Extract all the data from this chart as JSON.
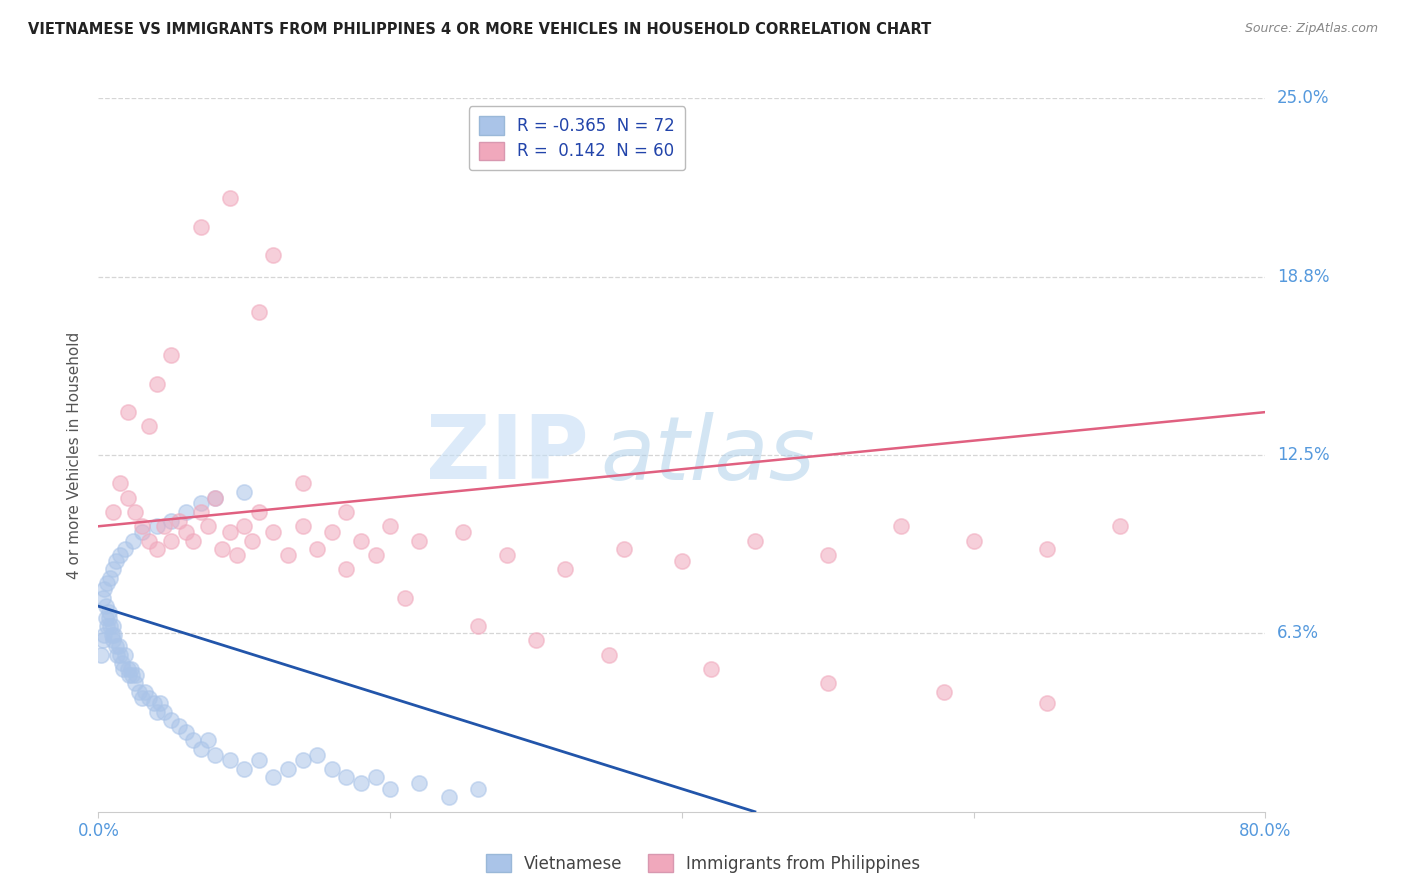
{
  "title": "VIETNAMESE VS IMMIGRANTS FROM PHILIPPINES 4 OR MORE VEHICLES IN HOUSEHOLD CORRELATION CHART",
  "source": "Source: ZipAtlas.com",
  "ylabel": "4 or more Vehicles in Household",
  "xlim": [
    0.0,
    80.0
  ],
  "ylim": [
    0.0,
    25.0
  ],
  "ytick_vals": [
    6.25,
    12.5,
    18.75,
    25.0
  ],
  "ytick_labels": [
    "6.3%",
    "12.5%",
    "18.8%",
    "25.0%"
  ],
  "series1_color": "#aac4e8",
  "series2_color": "#f0a8bc",
  "line1_color": "#2255aa",
  "line2_color": "#e06080",
  "legend_R1": "-0.365",
  "legend_N1": "72",
  "legend_R2": " 0.142",
  "legend_N2": "60",
  "legend1_label": "Vietnamese",
  "legend2_label": "Immigrants from Philippines",
  "watermark1": "ZIP",
  "watermark2": "atlas",
  "background_color": "#ffffff",
  "grid_color": "#cccccc",
  "title_color": "#222222",
  "axis_label_color": "#555555",
  "tick_label_color": "#5599dd",
  "blue_x": [
    0.2,
    0.3,
    0.4,
    0.5,
    0.5,
    0.6,
    0.7,
    0.7,
    0.8,
    0.9,
    1.0,
    1.0,
    1.1,
    1.2,
    1.3,
    1.4,
    1.5,
    1.6,
    1.7,
    1.8,
    2.0,
    2.1,
    2.2,
    2.3,
    2.5,
    2.6,
    2.8,
    3.0,
    3.2,
    3.5,
    3.8,
    4.0,
    4.2,
    4.5,
    5.0,
    5.5,
    6.0,
    6.5,
    7.0,
    7.5,
    8.0,
    9.0,
    10.0,
    11.0,
    12.0,
    13.0,
    14.0,
    15.0,
    16.0,
    17.0,
    18.0,
    19.0,
    20.0,
    22.0,
    24.0,
    26.0,
    0.3,
    0.4,
    0.6,
    0.8,
    1.0,
    1.2,
    1.5,
    1.8,
    2.4,
    3.0,
    4.0,
    5.0,
    6.0,
    7.0,
    8.0,
    10.0
  ],
  "blue_y": [
    5.5,
    6.0,
    6.2,
    6.8,
    7.2,
    6.5,
    6.8,
    7.0,
    6.5,
    6.2,
    6.0,
    6.5,
    6.2,
    5.8,
    5.5,
    5.8,
    5.5,
    5.2,
    5.0,
    5.5,
    5.0,
    4.8,
    5.0,
    4.8,
    4.5,
    4.8,
    4.2,
    4.0,
    4.2,
    4.0,
    3.8,
    3.5,
    3.8,
    3.5,
    3.2,
    3.0,
    2.8,
    2.5,
    2.2,
    2.5,
    2.0,
    1.8,
    1.5,
    1.8,
    1.2,
    1.5,
    1.8,
    2.0,
    1.5,
    1.2,
    1.0,
    1.2,
    0.8,
    1.0,
    0.5,
    0.8,
    7.5,
    7.8,
    8.0,
    8.2,
    8.5,
    8.8,
    9.0,
    9.2,
    9.5,
    9.8,
    10.0,
    10.2,
    10.5,
    10.8,
    11.0,
    11.2
  ],
  "pink_x": [
    1.0,
    1.5,
    2.0,
    2.5,
    3.0,
    3.5,
    4.0,
    4.5,
    5.0,
    5.5,
    6.0,
    6.5,
    7.0,
    7.5,
    8.0,
    8.5,
    9.0,
    9.5,
    10.0,
    10.5,
    11.0,
    12.0,
    13.0,
    14.0,
    15.0,
    16.0,
    17.0,
    18.0,
    19.0,
    20.0,
    22.0,
    25.0,
    28.0,
    32.0,
    36.0,
    40.0,
    45.0,
    50.0,
    55.0,
    60.0,
    65.0,
    70.0,
    2.0,
    3.5,
    5.0,
    7.0,
    9.0,
    11.0,
    14.0,
    17.0,
    21.0,
    26.0,
    30.0,
    35.0,
    42.0,
    50.0,
    58.0,
    65.0,
    4.0,
    12.0
  ],
  "pink_y": [
    10.5,
    11.5,
    11.0,
    10.5,
    10.0,
    9.5,
    9.2,
    10.0,
    9.5,
    10.2,
    9.8,
    9.5,
    10.5,
    10.0,
    11.0,
    9.2,
    9.8,
    9.0,
    10.0,
    9.5,
    10.5,
    9.8,
    9.0,
    10.0,
    9.2,
    9.8,
    10.5,
    9.5,
    9.0,
    10.0,
    9.5,
    9.8,
    9.0,
    8.5,
    9.2,
    8.8,
    9.5,
    9.0,
    10.0,
    9.5,
    9.2,
    10.0,
    14.0,
    13.5,
    16.0,
    20.5,
    21.5,
    17.5,
    11.5,
    8.5,
    7.5,
    6.5,
    6.0,
    5.5,
    5.0,
    4.5,
    4.2,
    3.8,
    15.0,
    19.5
  ],
  "line1_x0": 0.0,
  "line1_y0": 7.2,
  "line1_x1": 45.0,
  "line1_y1": 0.0,
  "line2_x0": 0.0,
  "line2_y0": 10.0,
  "line2_x1": 80.0,
  "line2_y1": 14.0
}
